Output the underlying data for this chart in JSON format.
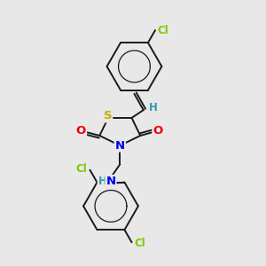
{
  "bg_color": "#e8e8e8",
  "bond_color": "#1a1a1a",
  "atom_colors": {
    "Cl": "#7ec800",
    "S": "#ccaa00",
    "N": "#0000ee",
    "O": "#ee0000",
    "H": "#3399aa"
  },
  "figsize": [
    3.0,
    3.0
  ],
  "dpi": 100
}
